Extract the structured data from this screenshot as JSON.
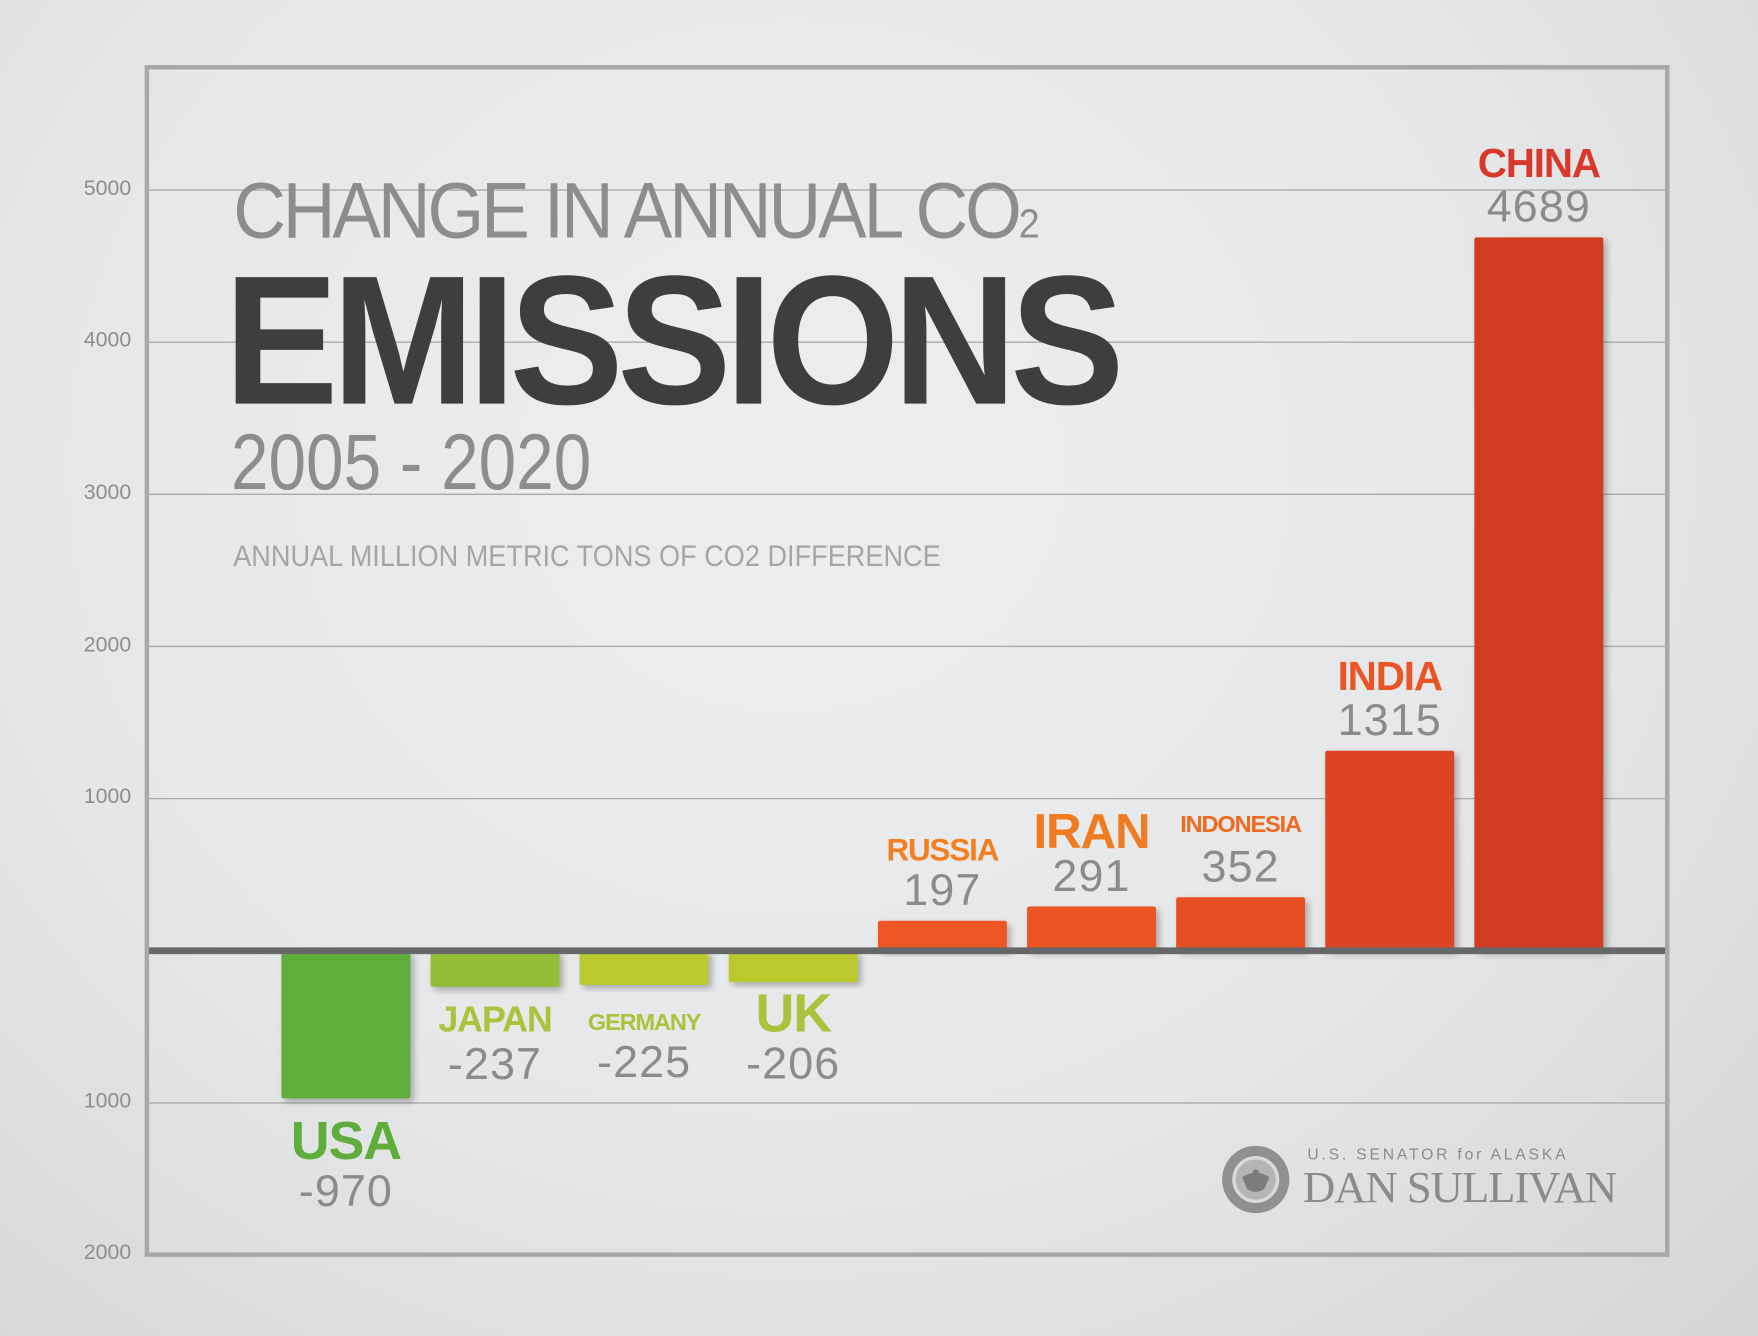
{
  "chart_data": {
    "type": "bar",
    "title": "CHANGE IN ANNUAL CO2 EMISSIONS",
    "title_parts": {
      "line1": "CHANGE IN ANNUAL CO",
      "line1_subscript": "2",
      "line2": "EMISSIONS",
      "line3": "2005 - 2020"
    },
    "subtitle": "ANNUAL MILLION METRIC TONS OF CO2 DIFFERENCE",
    "xlabel": "",
    "ylabel": "Annual million metric tons of CO2 difference",
    "ylim": [
      -2000,
      5800
    ],
    "grid": true,
    "yticks": [
      {
        "value": 5000,
        "label": "5000"
      },
      {
        "value": 4000,
        "label": "4000"
      },
      {
        "value": 3000,
        "label": "3000"
      },
      {
        "value": 2000,
        "label": "2000"
      },
      {
        "value": 1000,
        "label": "1000"
      },
      {
        "value": -1000,
        "label": "1000"
      },
      {
        "value": -2000,
        "label": "2000"
      }
    ],
    "categories": [
      "USA",
      "JAPAN",
      "GERMANY",
      "UK",
      "RUSSIA",
      "IRAN",
      "INDONESIA",
      "INDIA",
      "CHINA"
    ],
    "values": [
      -970,
      -237,
      -225,
      -206,
      197,
      291,
      352,
      1315,
      4689
    ],
    "value_labels": [
      "-970",
      "-237",
      "-225",
      "-206",
      "197",
      "291",
      "352",
      "1315",
      "4689"
    ],
    "bar_colors": [
      "#5fae3b",
      "#93be38",
      "#b9c92f",
      "#b9c92f",
      "#ef5523",
      "#ec5424",
      "#e64f24",
      "#dd4423",
      "#d03b24"
    ],
    "label_colors": [
      "#5fae3b",
      "#a7c43c",
      "#a7c43c",
      "#a7c43c",
      "#f47f20",
      "#f07b22",
      "#ee6a22",
      "#eb5424",
      "#d8392a"
    ],
    "legend": "none"
  },
  "branding": {
    "top_line": "U.S. SENATOR for ALASKA",
    "name": "DAN SULLIVAN",
    "seal_icon": "senate-seal-icon"
  },
  "colors": {
    "axis_frame": "#a7a8aa",
    "zero_line": "#666769",
    "gridline": "#a9aaac",
    "value_text": "#8a8b8d"
  }
}
